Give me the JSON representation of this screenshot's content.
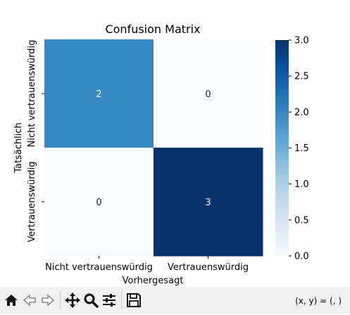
{
  "chart_data": {
    "type": "heatmap",
    "title": "Confusion Matrix",
    "xlabel": "Vorhergesagt",
    "ylabel": "Tatsächlich",
    "x_categories": [
      "Nicht vertrauenswürdig",
      "Vertrauenswürdig"
    ],
    "y_categories": [
      "Nicht vertrauenswürdig",
      "Vertrauenswürdig"
    ],
    "values": [
      [
        2,
        0
      ],
      [
        0,
        3
      ]
    ],
    "colormap": "Blues",
    "colorbar": {
      "range": [
        0.0,
        3.0
      ],
      "ticks": [
        "0.0",
        "0.5",
        "1.0",
        "1.5",
        "2.0",
        "2.5",
        "3.0"
      ],
      "low_color": "#f7fbff",
      "high_color": "#08306b"
    }
  },
  "toolbar": {
    "coords_label": "(x, y) = (, )",
    "buttons": [
      "home-icon",
      "back-icon",
      "forward-icon",
      "pan-icon",
      "zoom-icon",
      "configure-icon",
      "save-icon"
    ]
  }
}
